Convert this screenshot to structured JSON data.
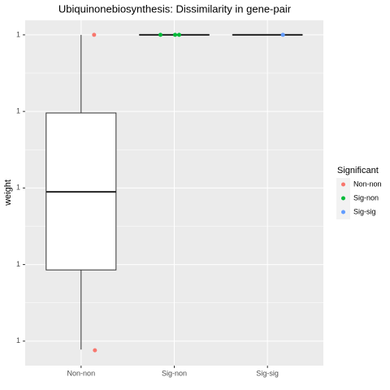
{
  "chart_data": {
    "type": "box",
    "title": "Ubiquinonebiosynthesis: Dissimilarity in gene-pair",
    "y_label": "weight",
    "categories": [
      "Non-non",
      "Sig-non",
      "Sig-sig"
    ],
    "boxes": [
      {
        "min": 0.9589,
        "q1": 0.9693,
        "median": 0.9795,
        "q3": 0.9898,
        "max": 1.0
      },
      {
        "min": 1.0,
        "q1": 1.0,
        "median": 1.0,
        "q3": 1.0,
        "max": 1.0
      },
      {
        "min": 1.0,
        "q1": 1.0,
        "median": 1.0,
        "q3": 1.0,
        "max": 1.0
      }
    ],
    "legend_title": "Significant",
    "series": [
      {
        "name": "Non-non",
        "color": "#F8766D",
        "values": [
          1.0,
          0.9588
        ]
      },
      {
        "name": "Sig-non",
        "color": "#00BA38",
        "values": [
          1.0,
          1.0,
          1.0
        ]
      },
      {
        "name": "Sig-sig",
        "color": "#619CFF",
        "values": [
          1.0
        ]
      }
    ],
    "ylim": [
      0.9568,
      1.0019
    ],
    "yticks": [
      {
        "value": 0.96,
        "label": "1"
      },
      {
        "value": 0.97,
        "label": "1"
      },
      {
        "value": 0.98,
        "label": "1"
      },
      {
        "value": 0.99,
        "label": "1"
      },
      {
        "value": 1.0,
        "label": "1"
      }
    ],
    "grid": true,
    "legend": "right"
  }
}
